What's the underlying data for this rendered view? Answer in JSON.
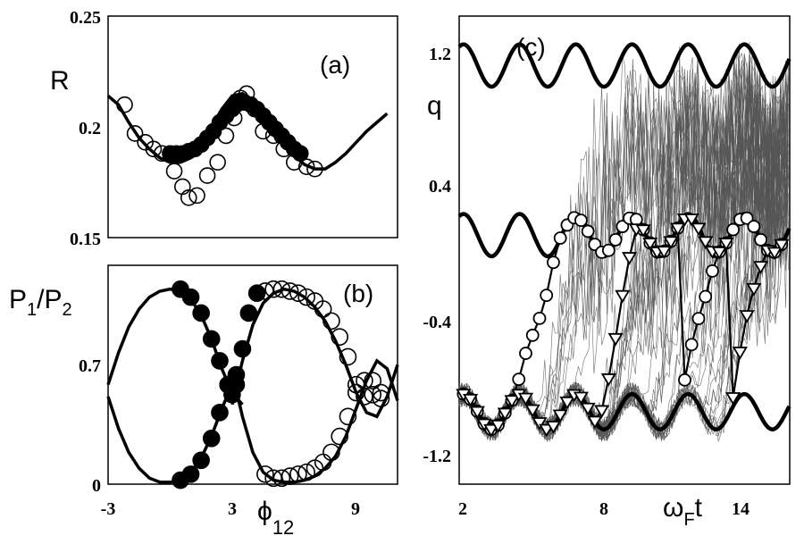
{
  "chart_data": [
    {
      "panel": "(a)",
      "type": "scatter",
      "ylabel": "R",
      "x_ticks": [],
      "y_ticks": [
        "0.15",
        "0.2",
        "0.25"
      ],
      "xlim": [
        -3,
        11
      ],
      "ylim": [
        0.15,
        0.25
      ],
      "series": [
        {
          "style": "line",
          "x": [
            -3,
            -2.5,
            -2,
            -1.5,
            -1,
            -0.5,
            0,
            0.5,
            1,
            1.5,
            2,
            2.5,
            3,
            3.5,
            4,
            4.5,
            5,
            5.5,
            6,
            6.5,
            7,
            7.5,
            8,
            8.5,
            9,
            9.5,
            10,
            10.5
          ],
          "y": [
            0.214,
            0.21,
            0.202,
            0.195,
            0.19,
            0.186,
            0.184,
            0.184,
            0.186,
            0.192,
            0.2,
            0.208,
            0.214,
            0.215,
            0.212,
            0.206,
            0.199,
            0.193,
            0.187,
            0.183,
            0.181,
            0.181,
            0.184,
            0.188,
            0.193,
            0.198,
            0.202,
            0.206
          ]
        },
        {
          "style": "filled-circle",
          "x": [
            0,
            0.3,
            0.6,
            0.9,
            1.2,
            1.5,
            1.8,
            2.1,
            2.4,
            2.7,
            3,
            3.2,
            3.4,
            3.6,
            3.9,
            4.2,
            4.5,
            4.8,
            5.1,
            5.4,
            5.7,
            6,
            6.3
          ],
          "y": [
            0.188,
            0.188,
            0.188,
            0.189,
            0.19,
            0.192,
            0.195,
            0.198,
            0.202,
            0.205,
            0.208,
            0.21,
            0.211,
            0.211,
            0.21,
            0.208,
            0.205,
            0.202,
            0.199,
            0.196,
            0.193,
            0.19,
            0.188
          ]
        },
        {
          "style": "open-circle",
          "x": [
            -2.2,
            -1.7,
            -1.2,
            -0.8,
            -0.4,
            0.2,
            0.6,
            0.9,
            1.3,
            1.8,
            2.3,
            2.7,
            3.1,
            3.4,
            3.7,
            4.1,
            4.5,
            5.0,
            5.5,
            6.0,
            6.6,
            7.0
          ],
          "y": [
            0.21,
            0.197,
            0.193,
            0.19,
            0.188,
            0.18,
            0.173,
            0.168,
            0.169,
            0.178,
            0.184,
            0.196,
            0.204,
            0.213,
            0.215,
            0.208,
            0.198,
            0.196,
            0.19,
            0.184,
            0.182,
            0.181
          ]
        }
      ]
    },
    {
      "panel": "(b)",
      "type": "scatter",
      "ylabel": "P₁/P₂",
      "xlabel": "ϕ₁₂",
      "x_ticks": [
        "-3",
        "3",
        "9"
      ],
      "y_ticks": [
        "0",
        "0.7"
      ],
      "xlim": [
        -3,
        11
      ],
      "ylim": [
        0,
        1.1
      ],
      "series": [
        {
          "style": "line-upper-left",
          "x": [
            -3,
            -2.5,
            -2,
            -1.5,
            -1,
            -0.5,
            0,
            0.5,
            1,
            1.5,
            2,
            2.5,
            3,
            3.5
          ],
          "y": [
            0.5,
            0.66,
            0.79,
            0.88,
            0.94,
            0.97,
            0.98,
            0.97,
            0.93,
            0.85,
            0.73,
            0.58,
            0.46,
            0.4
          ]
        },
        {
          "style": "line-lower-left",
          "x": [
            -3,
            -2.5,
            -2,
            -1.5,
            -1,
            -0.5,
            0,
            0.5,
            1,
            1.5,
            2,
            2.5,
            3,
            3.5
          ],
          "y": [
            0.44,
            0.28,
            0.16,
            0.08,
            0.03,
            0.01,
            0.01,
            0.02,
            0.06,
            0.13,
            0.24,
            0.38,
            0.5,
            0.56
          ]
        },
        {
          "style": "line-upper-right",
          "x": [
            3,
            3.5,
            4,
            4.5,
            5,
            5.5,
            6,
            6.5,
            7,
            7.5,
            8,
            8.5,
            9,
            9.5,
            10,
            10.5,
            11
          ],
          "y": [
            0.4,
            0.62,
            0.8,
            0.91,
            0.96,
            0.98,
            0.97,
            0.94,
            0.89,
            0.82,
            0.72,
            0.6,
            0.46,
            0.36,
            0.34,
            0.44,
            0.6
          ]
        },
        {
          "style": "line-lower-right",
          "x": [
            3,
            3.5,
            4,
            4.5,
            5,
            5.5,
            6,
            6.5,
            7,
            7.5,
            8,
            8.5,
            9,
            9.5,
            10,
            10.5,
            11
          ],
          "y": [
            0.56,
            0.34,
            0.16,
            0.06,
            0.02,
            0.01,
            0.01,
            0.02,
            0.04,
            0.08,
            0.14,
            0.24,
            0.38,
            0.52,
            0.62,
            0.58,
            0.42
          ]
        },
        {
          "style": "filled-circle",
          "x": [
            0.5,
            1,
            1.5,
            2,
            2.4,
            2.8,
            3,
            3.2,
            3.5,
            3.8,
            4.2,
            0.5,
            1,
            1.5,
            2,
            2.4,
            2.8,
            3.2
          ],
          "y": [
            0.98,
            0.94,
            0.86,
            0.73,
            0.62,
            0.5,
            0.45,
            0.5,
            0.68,
            0.86,
            0.96,
            0.02,
            0.05,
            0.12,
            0.23,
            0.36,
            0.5,
            0.55
          ]
        },
        {
          "style": "open-circle",
          "x": [
            4.6,
            5,
            5.4,
            5.8,
            6.2,
            6.6,
            7,
            7.4,
            7.8,
            8.2,
            8.6,
            9,
            9.4,
            9.8,
            10.2,
            4.6,
            5,
            5.4,
            5.8,
            6.2,
            6.6,
            7,
            7.4,
            7.8,
            8.2,
            8.6,
            9,
            9.4,
            9.8,
            10.2
          ],
          "y": [
            0.97,
            0.98,
            0.98,
            0.97,
            0.96,
            0.94,
            0.92,
            0.88,
            0.82,
            0.74,
            0.64,
            0.5,
            0.44,
            0.45,
            0.43,
            0.05,
            0.03,
            0.03,
            0.04,
            0.05,
            0.06,
            0.08,
            0.11,
            0.16,
            0.24,
            0.34,
            0.46,
            0.52,
            0.52,
            0.46
          ]
        }
      ]
    },
    {
      "panel": "(c)",
      "type": "line",
      "ylabel": "q",
      "xlabel": "ωFt",
      "x_ticks": [
        "2",
        "8",
        "14"
      ],
      "y_ticks": [
        "-1.2",
        "-0.4",
        "0.4",
        "1.2"
      ],
      "xlim": [
        2,
        17.3
      ],
      "ylim": [
        -1.35,
        1.3
      ],
      "series": [
        {
          "name": "",
          "style": "thick-line",
          "offset": 1.02,
          "amp": 0.12,
          "x_range": [
            2,
            17.3
          ]
        },
        {
          "name": "",
          "style": "thick-line",
          "offset": 0.06,
          "amp": 0.12,
          "x_range": [
            2,
            17.3
          ]
        },
        {
          "name": "",
          "style": "thick-line",
          "offset": -0.94,
          "amp": 0.1,
          "x_range": [
            2,
            17.3
          ]
        },
        {
          "name": "",
          "style": "open-circle-line",
          "jumps": [
            4.6,
            12.3
          ]
        },
        {
          "name": "",
          "style": "open-triangle-line",
          "jumps": [
            8.4,
            14.6
          ]
        },
        {
          "name": "",
          "style": "thin-grey-ensemble",
          "count": 45
        }
      ]
    }
  ],
  "labels": {
    "a": "(a)",
    "b": "(b)",
    "c": "(c)",
    "R": "R",
    "P1": "P",
    "P1_sub": "1",
    "slash": "/",
    "P2": "P",
    "P2_sub": "2",
    "phi": "ϕ",
    "phi_sub": "12",
    "q": "q",
    "omega": "ω",
    "omega_sub": "F",
    "t": "t"
  }
}
